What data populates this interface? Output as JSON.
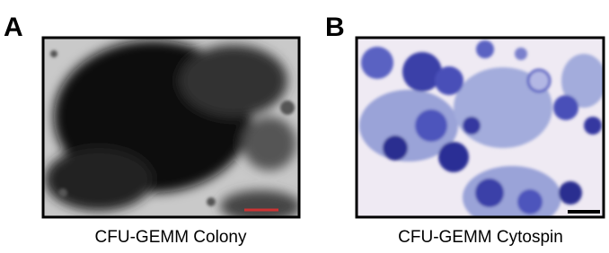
{
  "panels": [
    {
      "label": "A",
      "caption": "CFU-GEMM Colony"
    },
    {
      "label": "B",
      "caption": "CFU-GEMM Cytospin"
    }
  ]
}
